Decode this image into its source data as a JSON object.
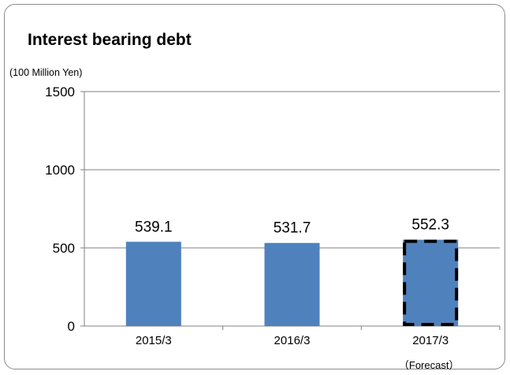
{
  "chart_data": {
    "type": "bar",
    "title": "Interest bearing debt",
    "ylabel": "(100 Million Yen)",
    "categories": [
      "2015/3",
      "2016/3",
      "2017/3"
    ],
    "category_note": [
      "",
      "",
      "（Forecast）"
    ],
    "values": [
      539.1,
      531.7,
      552.3
    ],
    "value_labels": [
      "539.1",
      "531.7",
      "552.3"
    ],
    "forecast": [
      false,
      false,
      true
    ],
    "ylim": [
      0,
      1500
    ],
    "yticks": [
      0,
      500,
      1000,
      1500
    ],
    "grid": true,
    "colors": {
      "bar": "#4f81bd",
      "grid": "#808080",
      "forecast_border": "#000000"
    }
  }
}
